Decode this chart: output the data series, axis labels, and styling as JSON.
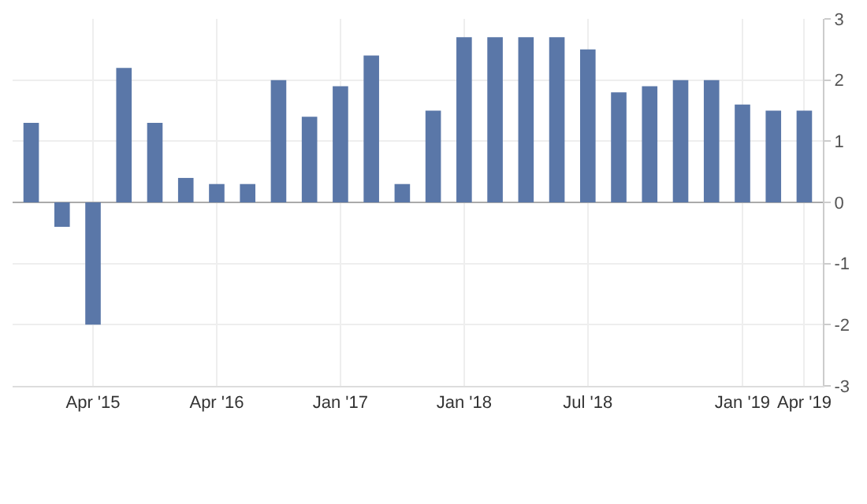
{
  "chart_data": {
    "type": "bar",
    "categories": [
      null,
      null,
      "Apr '15",
      null,
      null,
      null,
      "Apr '16",
      null,
      null,
      null,
      "Jan '17",
      null,
      null,
      null,
      "Jan '18",
      null,
      null,
      null,
      "Jul '18",
      null,
      null,
      null,
      null,
      "Jan '19",
      null,
      "Apr '19"
    ],
    "values": [
      1.3,
      -0.4,
      -2.0,
      2.2,
      1.3,
      0.4,
      0.3,
      0.3,
      2.0,
      1.4,
      1.9,
      2.4,
      0.3,
      1.5,
      2.7,
      2.7,
      2.7,
      2.7,
      2.5,
      1.8,
      1.9,
      2.0,
      2.0,
      1.6,
      1.5,
      1.5
    ],
    "color": "#5a77a8",
    "ylim": [
      -3,
      3
    ],
    "yticks": [
      -3,
      -2,
      -1,
      0,
      1,
      2,
      3
    ],
    "grid": true,
    "legend": false
  }
}
